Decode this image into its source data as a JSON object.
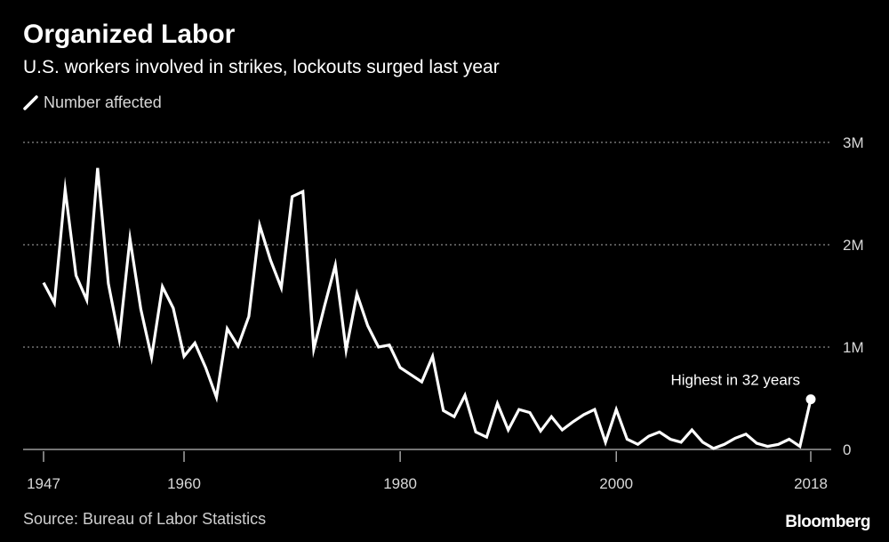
{
  "chart_data": {
    "type": "line",
    "title": "Organized Labor",
    "subtitle": "U.S. workers involved in strikes, lockouts surged last year",
    "legend": [
      "Number affected"
    ],
    "series": [
      {
        "name": "Number affected",
        "color": "#ffffff",
        "x": [
          1947,
          1948,
          1949,
          1950,
          1951,
          1952,
          1953,
          1954,
          1955,
          1956,
          1957,
          1958,
          1959,
          1960,
          1961,
          1962,
          1963,
          1964,
          1965,
          1966,
          1967,
          1968,
          1969,
          1970,
          1971,
          1972,
          1973,
          1974,
          1975,
          1976,
          1977,
          1978,
          1979,
          1980,
          1981,
          1982,
          1983,
          1984,
          1985,
          1986,
          1987,
          1988,
          1989,
          1990,
          1991,
          1992,
          1993,
          1994,
          1995,
          1996,
          1997,
          1998,
          1999,
          2000,
          2001,
          2002,
          2003,
          2004,
          2005,
          2006,
          2007,
          2008,
          2009,
          2010,
          2011,
          2012,
          2013,
          2014,
          2015,
          2016,
          2017,
          2018
        ],
        "values": [
          1630000,
          1430000,
          2540000,
          1700000,
          1460000,
          2750000,
          1620000,
          1080000,
          2060000,
          1370000,
          900000,
          1590000,
          1380000,
          910000,
          1040000,
          800000,
          510000,
          1180000,
          1010000,
          1300000,
          2190000,
          1850000,
          1580000,
          2470000,
          2520000,
          980000,
          1400000,
          1800000,
          970000,
          1520000,
          1210000,
          1000000,
          1020000,
          800000,
          730000,
          660000,
          910000,
          380000,
          320000,
          530000,
          170000,
          120000,
          450000,
          190000,
          390000,
          360000,
          180000,
          320000,
          190000,
          270000,
          340000,
          390000,
          70000,
          390000,
          100000,
          50000,
          130000,
          170000,
          100000,
          70000,
          190000,
          70000,
          10000,
          50000,
          110000,
          150000,
          60000,
          30000,
          50000,
          100000,
          30000,
          490000
        ]
      }
    ],
    "annotations": [
      {
        "x": 2018,
        "text": "Highest in 32 years"
      }
    ],
    "x_ticks": [
      "1947",
      "1960",
      "1980",
      "2000",
      "2018"
    ],
    "y_ticks": [
      "0",
      "1M",
      "2M",
      "3M"
    ],
    "xlim": [
      1947,
      2018
    ],
    "ylim": [
      0,
      3000000
    ],
    "grid": true,
    "legend_position": "top-left",
    "source": "Source: Bureau of Labor Statistics",
    "brand": "Bloomberg"
  }
}
